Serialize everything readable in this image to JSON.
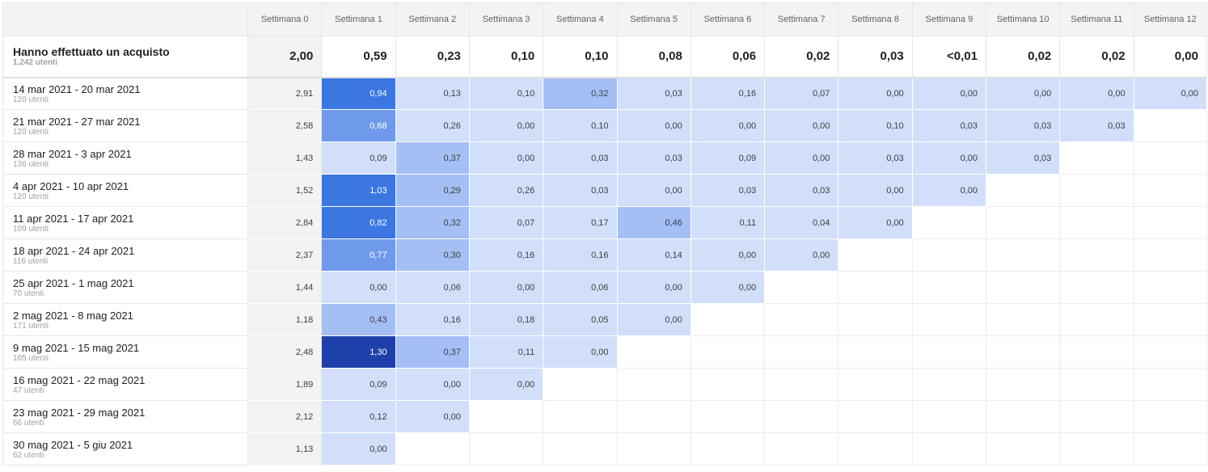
{
  "weeks": [
    "Settimana 0",
    "Settimana 1",
    "Settimana 2",
    "Settimana 3",
    "Settimana 4",
    "Settimana 5",
    "Settimana 6",
    "Settimana 7",
    "Settimana 8",
    "Settimana 9",
    "Settimana 10",
    "Settimana 11",
    "Settimana 12"
  ],
  "summary": {
    "label": "Hanno effettuato un acquisto",
    "users": "1.242 utenti",
    "values": [
      "2,00",
      "0,59",
      "0,23",
      "0,10",
      "0,10",
      "0,08",
      "0,06",
      "0,02",
      "0,03",
      "<0,01",
      "0,02",
      "0,02",
      "0,00"
    ]
  },
  "rows": [
    {
      "range": "14 mar 2021 - 20 mar 2021",
      "users": "120 utenti",
      "values": [
        "2,91",
        "0,94",
        "0,13",
        "0,10",
        "0,32",
        "0,03",
        "0,16",
        "0,07",
        "0,00",
        "0,00",
        "0,00",
        "0,00",
        "0,00"
      ]
    },
    {
      "range": "21 mar 2021 - 27 mar 2021",
      "users": "120 utenti",
      "values": [
        "2,58",
        "0,68",
        "0,26",
        "0,00",
        "0,10",
        "0,00",
        "0,00",
        "0,00",
        "0,10",
        "0,03",
        "0,03",
        "0,03"
      ]
    },
    {
      "range": "28 mar 2021 - 3 apr 2021",
      "users": "136 utenti",
      "values": [
        "1,43",
        "0,09",
        "0,37",
        "0,00",
        "0,03",
        "0,03",
        "0,09",
        "0,00",
        "0,03",
        "0,00",
        "0,03"
      ]
    },
    {
      "range": "4 apr 2021 - 10 apr 2021",
      "users": "120 utenti",
      "values": [
        "1,52",
        "1,03",
        "0,29",
        "0,26",
        "0,03",
        "0,00",
        "0,03",
        "0,03",
        "0,00",
        "0,00"
      ]
    },
    {
      "range": "11 apr 2021 - 17 apr 2021",
      "users": "109 utenti",
      "values": [
        "2,84",
        "0,82",
        "0,32",
        "0,07",
        "0,17",
        "0,46",
        "0,11",
        "0,04",
        "0,00"
      ]
    },
    {
      "range": "18 apr 2021 - 24 apr 2021",
      "users": "116 utenti",
      "values": [
        "2,37",
        "0,77",
        "0,30",
        "0,16",
        "0,16",
        "0,14",
        "0,00",
        "0,00"
      ]
    },
    {
      "range": "25 apr 2021 - 1 mag 2021",
      "users": "70 utenti",
      "values": [
        "1,44",
        "0,00",
        "0,06",
        "0,00",
        "0,06",
        "0,00",
        "0,00"
      ]
    },
    {
      "range": "2 mag 2021 - 8 mag 2021",
      "users": "171 utenti",
      "values": [
        "1,18",
        "0,43",
        "0,16",
        "0,18",
        "0,05",
        "0,00"
      ]
    },
    {
      "range": "9 mag 2021 - 15 mag 2021",
      "users": "105 utenti",
      "values": [
        "2,48",
        "1,30",
        "0,37",
        "0,11",
        "0,00"
      ]
    },
    {
      "range": "16 mag 2021 - 22 mag 2021",
      "users": "47 utenti",
      "values": [
        "1,89",
        "0,09",
        "0,00",
        "0,00"
      ]
    },
    {
      "range": "23 mag 2021 - 29 mag 2021",
      "users": "66 utenti",
      "values": [
        "2,12",
        "0,12",
        "0,00"
      ]
    },
    {
      "range": "30 mag 2021 - 5 giu 2021",
      "users": "62 utenti",
      "values": [
        "1,13",
        "0,00"
      ]
    }
  ]
}
